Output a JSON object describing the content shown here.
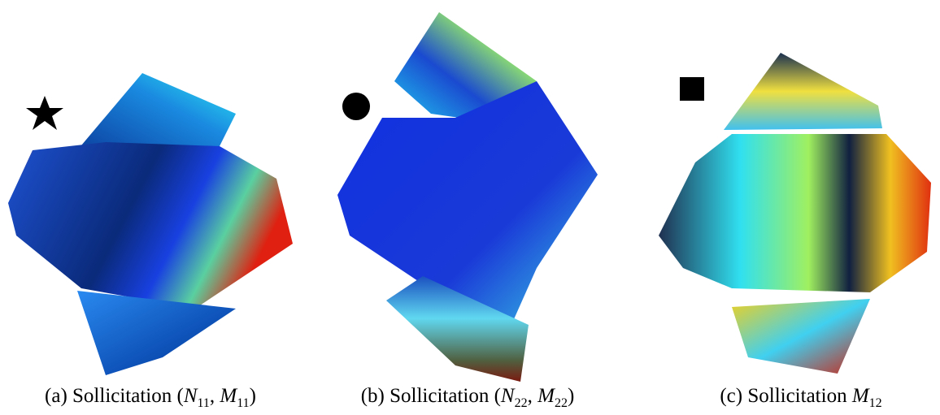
{
  "figure": {
    "panels": [
      {
        "caption": [
          {
            "text": "(a) Sollicitation ("
          },
          {
            "text": "N",
            "sub": "11"
          },
          {
            "text": ", "
          },
          {
            "text": "M",
            "sub": "11"
          },
          {
            "text": ")"
          }
        ]
      },
      {
        "caption": [
          {
            "text": "(b) Sollicitation ("
          },
          {
            "text": "N",
            "sub": "22"
          },
          {
            "text": ", "
          },
          {
            "text": "M",
            "sub": "22"
          },
          {
            "text": ")"
          }
        ]
      },
      {
        "caption": [
          {
            "text": "(c) Sollicitation "
          },
          {
            "text": "M",
            "sub": "12"
          }
        ]
      }
    ]
  }
}
